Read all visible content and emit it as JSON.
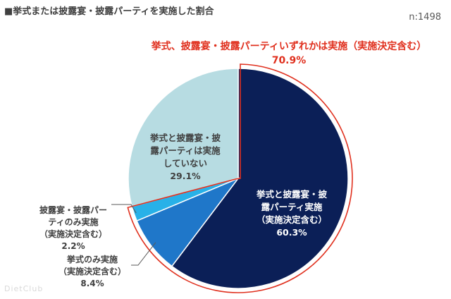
{
  "header": {
    "title": "■挙式または披露宴・披露パーティを実施した割合",
    "sample": "n:1498"
  },
  "callout": {
    "line1": "挙式、披露宴・披露パーティいずれかは実施（実施決定含む）",
    "line2": "70.9%"
  },
  "watermark": "DietClub",
  "colors": {
    "both": "#0b1f57",
    "ceremony_only": "#1f77c9",
    "party_only": "#28b1e8",
    "neither": "#b7dce2",
    "callout": "#e0301e"
  },
  "chart_data": {
    "type": "pie",
    "slices": [
      {
        "key": "both",
        "label_lines": [
          "挙式と披露宴・披",
          "露パーティ実施",
          "（実施決定含む）",
          "60.3%"
        ],
        "value": 60.3
      },
      {
        "key": "ceremony_only",
        "label_lines": [
          "挙式のみ実施",
          "（実施決定含む）",
          "8.4%"
        ],
        "value": 8.4
      },
      {
        "key": "party_only",
        "label_lines": [
          "披露宴・披露パー",
          "ティのみ実施",
          "（実施決定含む）",
          "2.2%"
        ],
        "value": 2.2
      },
      {
        "key": "neither",
        "label_lines": [
          "挙式と披露宴・披",
          "露パーティは実施",
          "していない",
          "29.1%"
        ],
        "value": 29.1
      }
    ],
    "highlight_total": 70.9
  }
}
